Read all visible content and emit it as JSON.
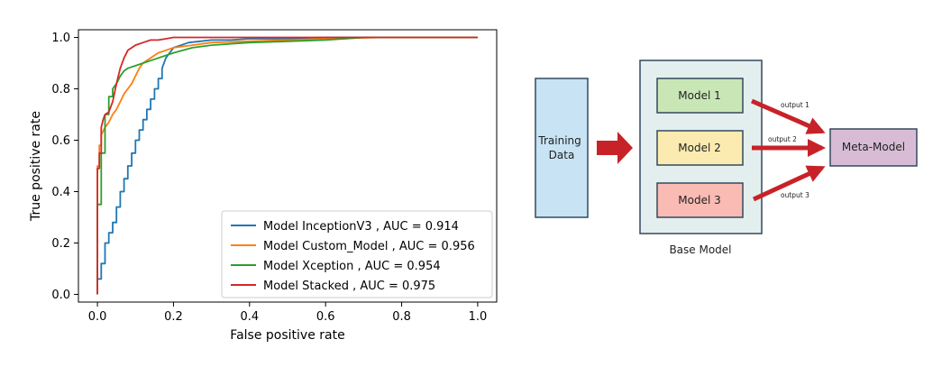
{
  "colors": {
    "background": "#ffffff",
    "inception": "#1f77b4",
    "custom": "#ff7f0e",
    "xception": "#2ca02c",
    "stacked": "#d62728",
    "training_data_fill": "#c7e3f4",
    "base_model_fill": "#e3efee",
    "model1_fill": "#c9e7b6",
    "model2_fill": "#fcebb0",
    "model3_fill": "#f9bbb4",
    "meta_model_fill": "#d8bcd6",
    "arrow": "#c82229"
  },
  "chart_data": {
    "type": "line",
    "title": "",
    "xlabel": "False positive rate",
    "ylabel": "True positive rate",
    "xlim": [
      -0.05,
      1.05
    ],
    "ylim": [
      -0.03,
      1.03
    ],
    "x_ticks": [
      0.0,
      0.2,
      0.4,
      0.6,
      0.8,
      1.0
    ],
    "y_ticks": [
      0.0,
      0.2,
      0.4,
      0.6,
      0.8,
      1.0
    ],
    "x_tick_labels": [
      "0.0",
      "0.2",
      "0.4",
      "0.6",
      "0.8",
      "1.0"
    ],
    "y_tick_labels": [
      "0.0",
      "0.2",
      "0.4",
      "0.6",
      "0.8",
      "1.0"
    ],
    "grid": false,
    "legend_position": "lower-right",
    "series": [
      {
        "name": "Model InceptionV3 , AUC = 0.914",
        "color": "#1f77b4",
        "x": [
          0.0,
          0.0,
          0.01,
          0.01,
          0.02,
          0.02,
          0.03,
          0.03,
          0.04,
          0.04,
          0.05,
          0.05,
          0.06,
          0.06,
          0.07,
          0.07,
          0.08,
          0.08,
          0.09,
          0.09,
          0.1,
          0.1,
          0.11,
          0.11,
          0.12,
          0.12,
          0.13,
          0.13,
          0.14,
          0.14,
          0.15,
          0.15,
          0.16,
          0.16,
          0.17,
          0.17,
          0.18,
          0.19,
          0.2,
          0.22,
          0.24,
          0.27,
          0.3,
          0.35,
          0.4,
          0.5,
          0.6,
          0.7,
          0.8,
          1.0
        ],
        "y": [
          0.0,
          0.06,
          0.06,
          0.12,
          0.12,
          0.2,
          0.2,
          0.24,
          0.24,
          0.28,
          0.28,
          0.34,
          0.34,
          0.4,
          0.4,
          0.45,
          0.45,
          0.5,
          0.5,
          0.55,
          0.55,
          0.6,
          0.6,
          0.64,
          0.64,
          0.68,
          0.68,
          0.72,
          0.72,
          0.76,
          0.76,
          0.8,
          0.8,
          0.84,
          0.84,
          0.88,
          0.92,
          0.94,
          0.96,
          0.97,
          0.98,
          0.985,
          0.99,
          0.99,
          0.995,
          0.995,
          1.0,
          1.0,
          1.0,
          1.0
        ]
      },
      {
        "name": "Model Custom_Model , AUC = 0.956",
        "color": "#ff7f0e",
        "x": [
          0.0,
          0.0,
          0.005,
          0.005,
          0.01,
          0.01,
          0.02,
          0.03,
          0.04,
          0.05,
          0.06,
          0.07,
          0.08,
          0.09,
          0.1,
          0.11,
          0.12,
          0.14,
          0.16,
          0.18,
          0.2,
          0.25,
          0.3,
          0.4,
          0.5,
          0.6,
          0.75,
          1.0
        ],
        "y": [
          0.0,
          0.5,
          0.5,
          0.58,
          0.58,
          0.62,
          0.65,
          0.67,
          0.7,
          0.72,
          0.75,
          0.78,
          0.8,
          0.82,
          0.85,
          0.88,
          0.9,
          0.92,
          0.94,
          0.95,
          0.96,
          0.97,
          0.98,
          0.985,
          0.99,
          0.995,
          1.0,
          1.0
        ]
      },
      {
        "name": "Model Xception , AUC = 0.954",
        "color": "#2ca02c",
        "x": [
          0.0,
          0.0,
          0.01,
          0.01,
          0.02,
          0.02,
          0.03,
          0.03,
          0.04,
          0.04,
          0.05,
          0.06,
          0.07,
          0.08,
          0.1,
          0.12,
          0.14,
          0.16,
          0.18,
          0.2,
          0.25,
          0.3,
          0.4,
          0.5,
          0.6,
          0.7,
          1.0
        ],
        "y": [
          0.0,
          0.35,
          0.35,
          0.55,
          0.55,
          0.7,
          0.7,
          0.77,
          0.77,
          0.8,
          0.82,
          0.85,
          0.87,
          0.88,
          0.89,
          0.9,
          0.91,
          0.92,
          0.93,
          0.94,
          0.96,
          0.97,
          0.98,
          0.985,
          0.99,
          1.0,
          1.0
        ]
      },
      {
        "name": "Model Stacked , AUC = 0.975",
        "color": "#d62728",
        "x": [
          0.0,
          0.0,
          0.005,
          0.005,
          0.01,
          0.01,
          0.015,
          0.02,
          0.03,
          0.04,
          0.05,
          0.06,
          0.07,
          0.08,
          0.1,
          0.12,
          0.14,
          0.16,
          0.18,
          0.2,
          0.25,
          0.3,
          0.5,
          1.0
        ],
        "y": [
          0.0,
          0.49,
          0.49,
          0.55,
          0.55,
          0.65,
          0.68,
          0.7,
          0.71,
          0.75,
          0.82,
          0.88,
          0.92,
          0.95,
          0.97,
          0.98,
          0.99,
          0.99,
          0.995,
          1.0,
          1.0,
          1.0,
          1.0,
          1.0
        ]
      }
    ]
  },
  "diagram": {
    "training_data_label": [
      "Training",
      "Data"
    ],
    "base_model_label": "Base Model",
    "models": [
      "Model 1",
      "Model 2",
      "Model 3"
    ],
    "meta_model_label": "Meta-Model",
    "outputs": [
      "output 1",
      "output 2",
      "output 3"
    ]
  }
}
